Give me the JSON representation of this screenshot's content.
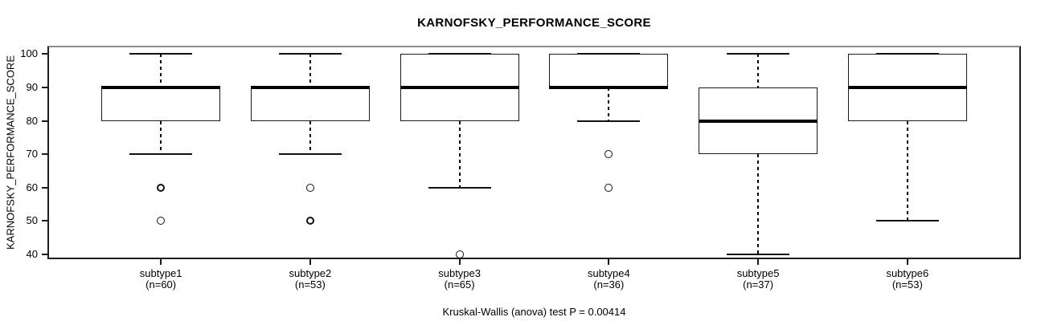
{
  "chart_data": {
    "type": "boxplot",
    "title": "KARNOFSKY_PERFORMANCE_SCORE",
    "ylabel": "KARNOFSKY_PERFORMANCE_SCORE",
    "xlabel": "",
    "annotation": "Kruskal-Wallis (anova) test P = 0.00414",
    "ylim": [
      38.5,
      102.5
    ],
    "yticks": [
      40,
      50,
      60,
      70,
      80,
      90,
      100
    ],
    "grid": false,
    "legend": "none",
    "groups": [
      {
        "label": "subtype1",
        "n_label": "(n=60)",
        "n": 60,
        "whisker_low": 70,
        "q1": 80,
        "median": 90,
        "q3": 90,
        "whisker_high": 100,
        "outliers": [
          60,
          50
        ],
        "bold_outliers": [
          60
        ]
      },
      {
        "label": "subtype2",
        "n_label": "(n=53)",
        "n": 53,
        "whisker_low": 70,
        "q1": 80,
        "median": 90,
        "q3": 90,
        "whisker_high": 100,
        "outliers": [
          60,
          50
        ],
        "bold_outliers": [
          50
        ]
      },
      {
        "label": "subtype3",
        "n_label": "(n=65)",
        "n": 65,
        "whisker_low": 60,
        "q1": 80,
        "median": 90,
        "q3": 100,
        "whisker_high": 100,
        "outliers": [
          40
        ],
        "bold_outliers": []
      },
      {
        "label": "subtype4",
        "n_label": "(n=36)",
        "n": 36,
        "whisker_low": 80,
        "q1": 90,
        "median": 90,
        "q3": 100,
        "whisker_high": 100,
        "outliers": [
          70,
          60
        ],
        "bold_outliers": []
      },
      {
        "label": "subtype5",
        "n_label": "(n=37)",
        "n": 37,
        "whisker_low": 40,
        "q1": 70,
        "median": 80,
        "q3": 90,
        "whisker_high": 100,
        "outliers": [],
        "bold_outliers": []
      },
      {
        "label": "subtype6",
        "n_label": "(n=53)",
        "n": 53,
        "whisker_low": 50,
        "q1": 80,
        "median": 90,
        "q3": 100,
        "whisker_high": 100,
        "outliers": [],
        "bold_outliers": []
      }
    ],
    "colors": {
      "line": "#000000",
      "frame": "#1f1f1f",
      "frame_top": "#8c8c8c",
      "box_fill": "#ffffff",
      "background": "#ffffff",
      "text": "#000000"
    }
  }
}
